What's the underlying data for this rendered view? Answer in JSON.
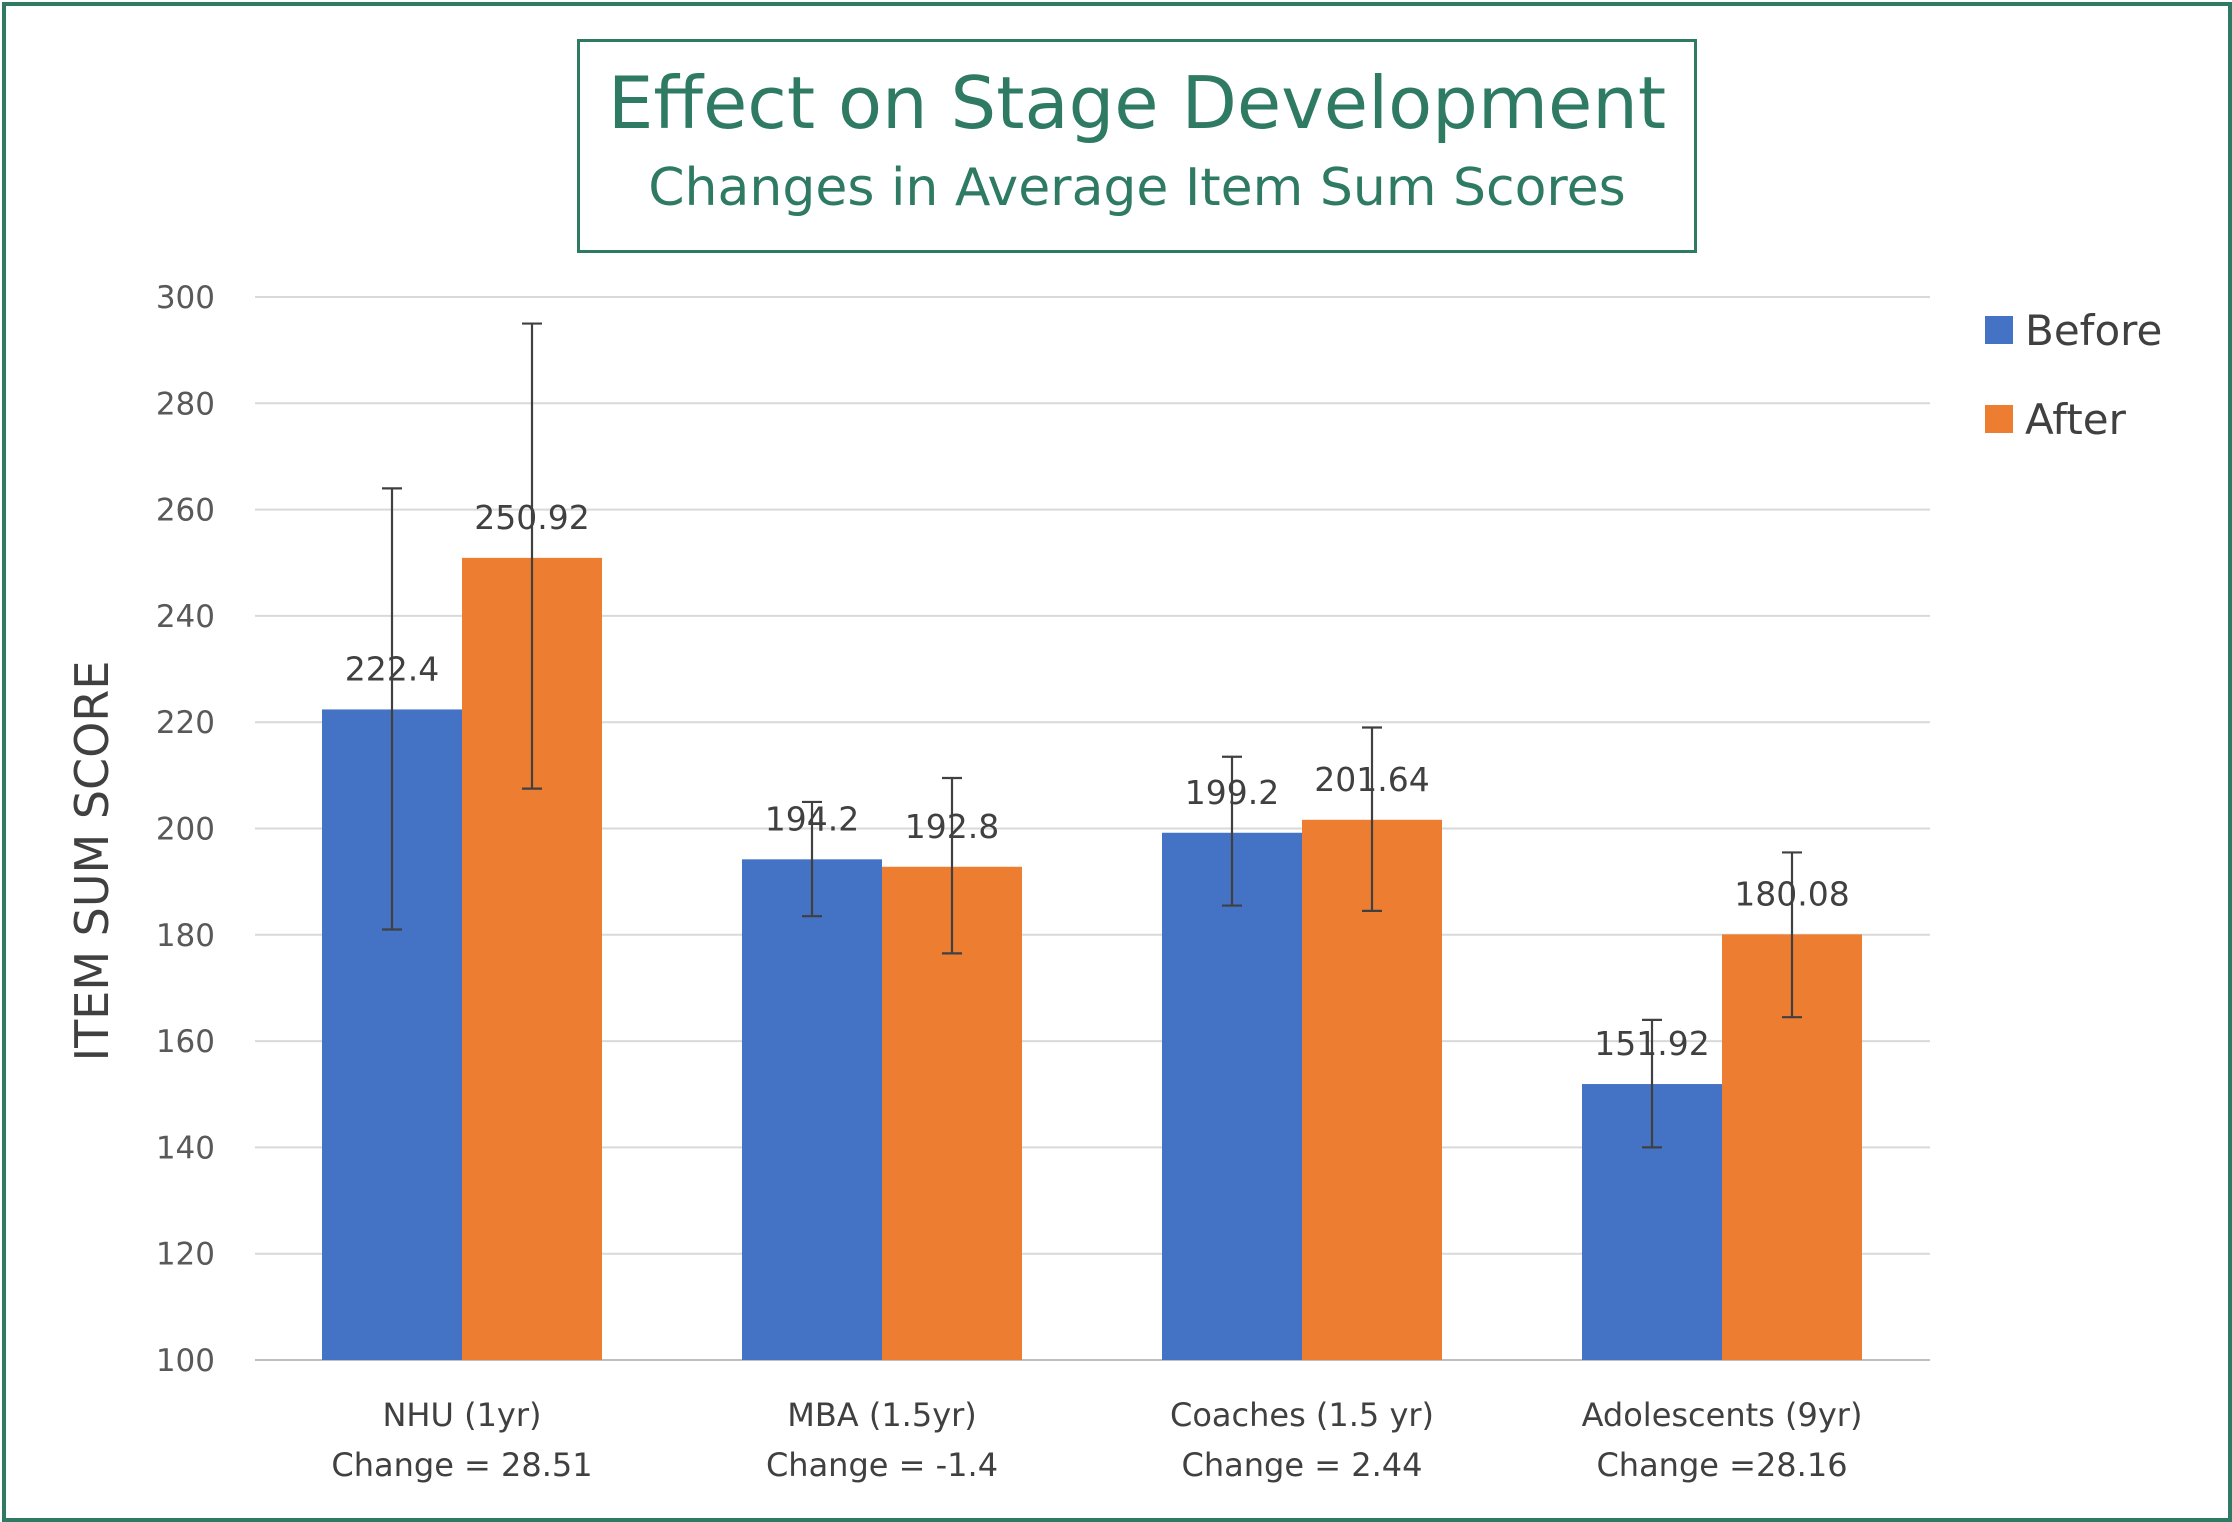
{
  "chart_data": {
    "type": "bar",
    "title": "Effect on Stage Development",
    "subtitle": "Changes in Average Item Sum Scores",
    "xlabel": "",
    "ylabel": "ITEM SUM SCORE",
    "ylim": [
      100,
      300
    ],
    "yticks": [
      100,
      120,
      140,
      160,
      180,
      200,
      220,
      240,
      260,
      280,
      300
    ],
    "grid": true,
    "legend_position": "right",
    "categories": [
      {
        "name": "NHU (1yr)",
        "change": "Change = 28.51"
      },
      {
        "name": "MBA (1.5yr)",
        "change": "Change = -1.4"
      },
      {
        "name": "Coaches (1.5 yr)",
        "change": "Change = 2.44"
      },
      {
        "name": "Adolescents (9yr)",
        "change": "Change =28.16"
      }
    ],
    "series": [
      {
        "name": "Before",
        "color": "#4472c4",
        "values": [
          222.4,
          194.2,
          199.2,
          151.92
        ],
        "labels": [
          "222.4",
          "194.2",
          "199.2",
          "151.92"
        ],
        "error_low": [
          181,
          183.5,
          185.5,
          140
        ],
        "error_high": [
          264,
          205,
          213.5,
          164
        ]
      },
      {
        "name": "After",
        "color": "#ed7d31",
        "values": [
          250.92,
          192.8,
          201.64,
          180.08
        ],
        "labels": [
          "250.92",
          "192.8",
          "201.64",
          "180.08"
        ],
        "error_low": [
          207.5,
          176.5,
          184.5,
          164.5
        ],
        "error_high": [
          295,
          209.5,
          219,
          195.5
        ]
      }
    ]
  }
}
